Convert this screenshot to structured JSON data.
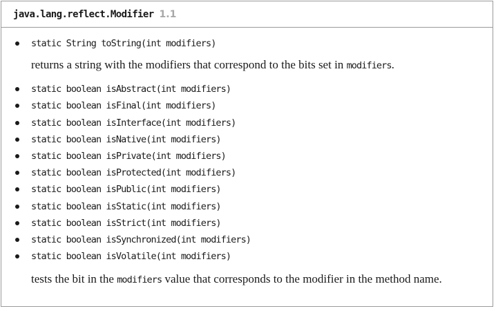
{
  "header": {
    "class_name": "java.lang.reflect.Modifier",
    "version": "1.1"
  },
  "to_string": {
    "signature": "static String toString(int modifiers)",
    "desc_before": "returns a string with the modifiers that correspond to the bits set in ",
    "desc_code": "modifiers",
    "desc_after": "."
  },
  "methods": [
    "static boolean isAbstract(int modifiers)",
    "static boolean isFinal(int modifiers)",
    "static boolean isInterface(int modifiers)",
    "static boolean isNative(int modifiers)",
    "static boolean isPrivate(int modifiers)",
    "static boolean isProtected(int modifiers)",
    "static boolean isPublic(int modifiers)",
    "static boolean isStatic(int modifiers)",
    "static boolean isStrict(int modifiers)",
    "static boolean isSynchronized(int modifiers)",
    "static boolean isVolatile(int modifiers)"
  ],
  "tests_desc": {
    "before": "tests the bit in the ",
    "code": "modifiers",
    "after": " value that corresponds to the modifier in the method name."
  }
}
